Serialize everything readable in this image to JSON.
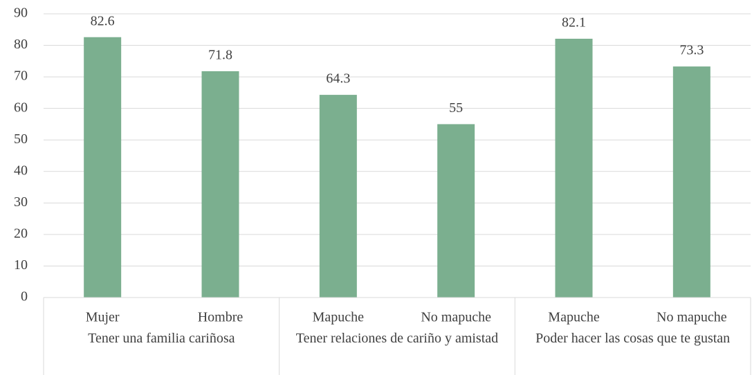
{
  "chart_data": {
    "type": "bar",
    "categories": [
      "Mujer",
      "Hombre",
      "Mapuche",
      "No mapuche",
      "Mapuche",
      "No mapuche"
    ],
    "groups": [
      "Tener una familia cariñosa",
      "Tener relaciones de cariño y amistad",
      "Poder hacer las cosas que te gustan"
    ],
    "values": [
      82.6,
      71.8,
      64.3,
      55,
      82.1,
      73.3
    ],
    "color": "#7baf8f",
    "ylim": [
      0,
      90
    ],
    "yticks": [
      0,
      10,
      20,
      30,
      40,
      50,
      60,
      70,
      80,
      90
    ],
    "grid": true
  }
}
